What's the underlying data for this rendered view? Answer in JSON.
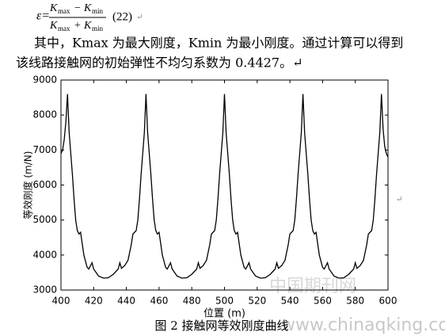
{
  "formula": {
    "lhs": "ε=",
    "numerator": {
      "k1": "K",
      "s1": "max",
      "op": "−",
      "k2": "K",
      "s2": "min"
    },
    "denominator": {
      "k1": "K",
      "s1": "max",
      "op": "+",
      "k2": "K",
      "s2": "min"
    },
    "number": "(22)",
    "mark": "↵"
  },
  "paragraph": [
    "其中，Kmax 为最大刚度，Kmin 为最小刚度。通过计算可以得到",
    "该线路接触网的初始弹性不均匀系数为 0.4427。↵"
  ],
  "chart_data": {
    "type": "line",
    "xlabel": "位置 (m)",
    "ylabel": "等效刚度 (m/N)",
    "x": [
      400,
      401,
      402,
      403,
      404,
      405,
      406,
      407,
      408,
      409,
      410,
      411,
      412,
      414,
      416,
      417,
      419,
      420,
      423,
      426,
      429,
      432,
      435,
      436,
      437,
      439,
      441,
      443,
      444,
      445,
      446,
      447,
      448,
      449,
      450,
      451,
      452,
      453,
      454,
      455,
      456,
      457,
      458,
      459,
      460,
      462,
      464,
      465,
      467,
      468,
      471,
      474,
      477,
      480,
      483,
      484,
      485,
      487,
      489,
      491,
      492,
      493,
      494,
      495,
      496,
      497,
      498,
      499,
      500,
      501,
      502,
      503,
      504,
      505,
      506,
      507,
      508,
      510,
      512,
      513,
      515,
      516,
      519,
      522,
      525,
      528,
      531,
      532,
      533,
      535,
      537,
      539,
      540,
      541,
      542,
      543,
      544,
      545,
      546,
      547,
      548,
      549,
      550,
      551,
      552,
      553,
      554,
      555,
      556,
      558,
      560,
      561,
      563,
      564,
      567,
      570,
      573,
      576,
      579,
      580,
      581,
      583,
      585,
      587,
      588,
      589,
      590,
      591,
      592,
      593,
      594,
      595,
      596,
      597,
      598,
      599,
      600
    ],
    "series": [
      {
        "name": "等效刚度",
        "color": "#000000",
        "values": [
          6900,
          7000,
          7300,
          7800,
          8600,
          7500,
          6900,
          6300,
          5600,
          5000,
          4700,
          4600,
          4650,
          4000,
          3650,
          3600,
          3780,
          3600,
          3400,
          3340,
          3350,
          3450,
          3600,
          3780,
          3620,
          3700,
          3850,
          4300,
          4600,
          4650,
          4700,
          5000,
          5600,
          6300,
          6900,
          7500,
          8600,
          7500,
          6900,
          6300,
          5600,
          5000,
          4700,
          4600,
          4650,
          4000,
          3650,
          3600,
          3780,
          3600,
          3400,
          3340,
          3350,
          3450,
          3600,
          3780,
          3620,
          3700,
          3850,
          4300,
          4600,
          4650,
          4700,
          5000,
          5600,
          6300,
          6900,
          7500,
          8600,
          7500,
          6900,
          6300,
          5600,
          5000,
          4700,
          4600,
          4650,
          4000,
          3650,
          3600,
          3780,
          3600,
          3400,
          3340,
          3350,
          3450,
          3600,
          3780,
          3620,
          3700,
          3850,
          4300,
          4600,
          4650,
          4700,
          5000,
          5600,
          6300,
          6900,
          7500,
          8600,
          7500,
          6900,
          6300,
          5600,
          5000,
          4700,
          4600,
          4650,
          4000,
          3650,
          3600,
          3780,
          3600,
          3400,
          3340,
          3350,
          3450,
          3600,
          3780,
          3620,
          3700,
          3850,
          4300,
          4600,
          4650,
          4700,
          5000,
          5600,
          6300,
          6900,
          7500,
          8600,
          7600,
          7100,
          6900,
          6800
        ]
      }
    ],
    "xlim": [
      400,
      600
    ],
    "xticks": [
      400,
      420,
      440,
      460,
      480,
      500,
      520,
      540,
      560,
      580,
      600
    ],
    "ylim": [
      3000,
      9000
    ],
    "yticks": [
      3000,
      4000,
      5000,
      6000,
      7000,
      8000,
      9000
    ],
    "grid": false
  },
  "side_mark": "↵",
  "caption": "图 2  接触网等效刚度曲线",
  "watermark": {
    "name": "中国期刊网",
    "url": "www.chinaqking.com"
  }
}
